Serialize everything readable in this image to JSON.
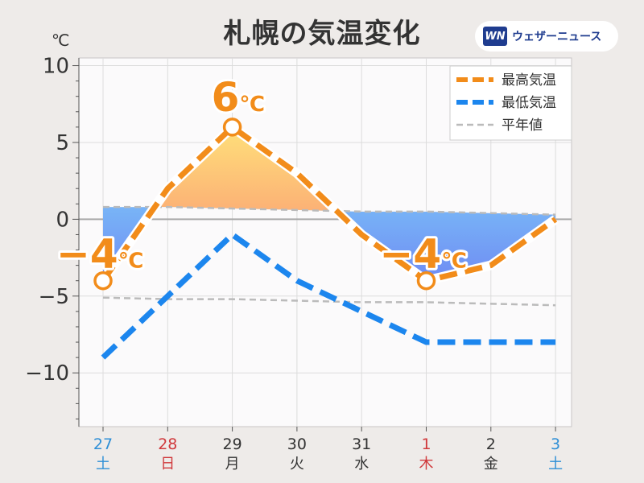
{
  "title": "札幌の気温変化",
  "logo": {
    "mark": "WN",
    "text": "ウェザーニュース"
  },
  "colors": {
    "high": "#f28c1a",
    "low": "#1c86ee",
    "normal": "#bbbbbb",
    "warm_fill": "#f9a07a",
    "cool_fill": "#7fd3f8",
    "sunday": "#d0393c",
    "saturday": "#2f8fd6",
    "weekday": "#333333"
  },
  "chart_data": {
    "type": "line",
    "y_unit": "℃",
    "ylim": [
      -13.5,
      10.5
    ],
    "yticks": [
      10,
      5,
      0,
      -5,
      -10
    ],
    "ytick_labels": [
      "10",
      "5",
      "0",
      "−5",
      "−10"
    ],
    "grid": true,
    "legend_position": "top-right",
    "categories": [
      {
        "date": "27",
        "weekday": "土",
        "day_type": "saturday"
      },
      {
        "date": "28",
        "weekday": "日",
        "day_type": "sunday"
      },
      {
        "date": "29",
        "weekday": "月",
        "day_type": "weekday"
      },
      {
        "date": "30",
        "weekday": "火",
        "day_type": "weekday"
      },
      {
        "date": "31",
        "weekday": "水",
        "day_type": "weekday"
      },
      {
        "date": "1",
        "weekday": "木",
        "day_type": "sunday"
      },
      {
        "date": "2",
        "weekday": "金",
        "day_type": "weekday"
      },
      {
        "date": "3",
        "weekday": "土",
        "day_type": "saturday"
      }
    ],
    "series": [
      {
        "name": "最高気温",
        "key": "high",
        "values": [
          -4,
          2,
          6,
          3,
          -1,
          -4,
          -3,
          0
        ]
      },
      {
        "name": "最低気温",
        "key": "low",
        "values": [
          -9,
          -5,
          -1,
          -4,
          -6,
          -8,
          -8,
          -8
        ]
      }
    ],
    "normals": [
      {
        "name": "平年値",
        "key": "normal_high",
        "values": [
          0.8,
          0.8,
          0.7,
          0.6,
          0.5,
          0.5,
          0.4,
          0.3
        ]
      },
      {
        "key": "normal_low",
        "values": [
          -5.1,
          -5.2,
          -5.2,
          -5.3,
          -5.4,
          -5.4,
          -5.5,
          -5.6
        ]
      }
    ],
    "annotations": [
      {
        "index": 0,
        "value": -4,
        "text": "−4",
        "unit": "℃"
      },
      {
        "index": 2,
        "value": 6,
        "text": "6",
        "unit": "℃"
      },
      {
        "index": 5,
        "value": -4,
        "text": "−4",
        "unit": "℃"
      }
    ]
  }
}
